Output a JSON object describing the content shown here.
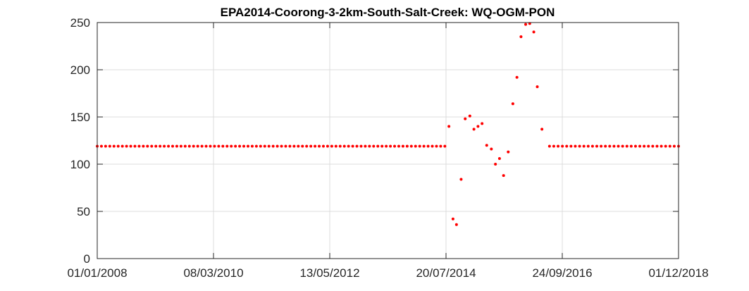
{
  "chart_data": {
    "type": "scatter",
    "title": "EPA2014-Coorong-3-2km-South-Salt-Creek: WQ-OGM-PON",
    "xlabel": "",
    "ylabel": "",
    "grid": true,
    "marker_color": "#ff0000",
    "x_tick_labels": [
      "01/01/2008",
      "08/03/2010",
      "13/05/2012",
      "20/07/2014",
      "24/09/2016",
      "01/12/2018"
    ],
    "y_tick_labels": [
      "0",
      "50",
      "100",
      "150",
      "200",
      "250"
    ],
    "x_ticks": [
      0,
      2,
      4,
      6,
      8,
      10
    ],
    "xlim": [
      0,
      10
    ],
    "ylim": [
      0,
      250
    ],
    "x_unit_note": "x values in tick intervals (each interval ≈ 797 days) from 01/01/2008",
    "constant_segments": [
      {
        "x_start": 0.0,
        "x_end": 5.98,
        "count": 84,
        "y": 119
      },
      {
        "x_start": 7.78,
        "x_end": 10.0,
        "count": 31,
        "y": 119
      }
    ],
    "series": [
      {
        "name": "WQ-OGM-PON",
        "points": [
          [
            6.05,
            140
          ],
          [
            6.12,
            42
          ],
          [
            6.18,
            36
          ],
          [
            6.26,
            84
          ],
          [
            6.33,
            148
          ],
          [
            6.41,
            151
          ],
          [
            6.48,
            137
          ],
          [
            6.55,
            140
          ],
          [
            6.62,
            143
          ],
          [
            6.7,
            120
          ],
          [
            6.78,
            116
          ],
          [
            6.85,
            100
          ],
          [
            6.92,
            106
          ],
          [
            6.99,
            88
          ],
          [
            7.07,
            113
          ],
          [
            7.15,
            164
          ],
          [
            7.22,
            192
          ],
          [
            7.29,
            235
          ],
          [
            7.37,
            248
          ],
          [
            7.44,
            249
          ],
          [
            7.51,
            240
          ],
          [
            7.57,
            182
          ],
          [
            7.65,
            137
          ]
        ]
      }
    ]
  }
}
